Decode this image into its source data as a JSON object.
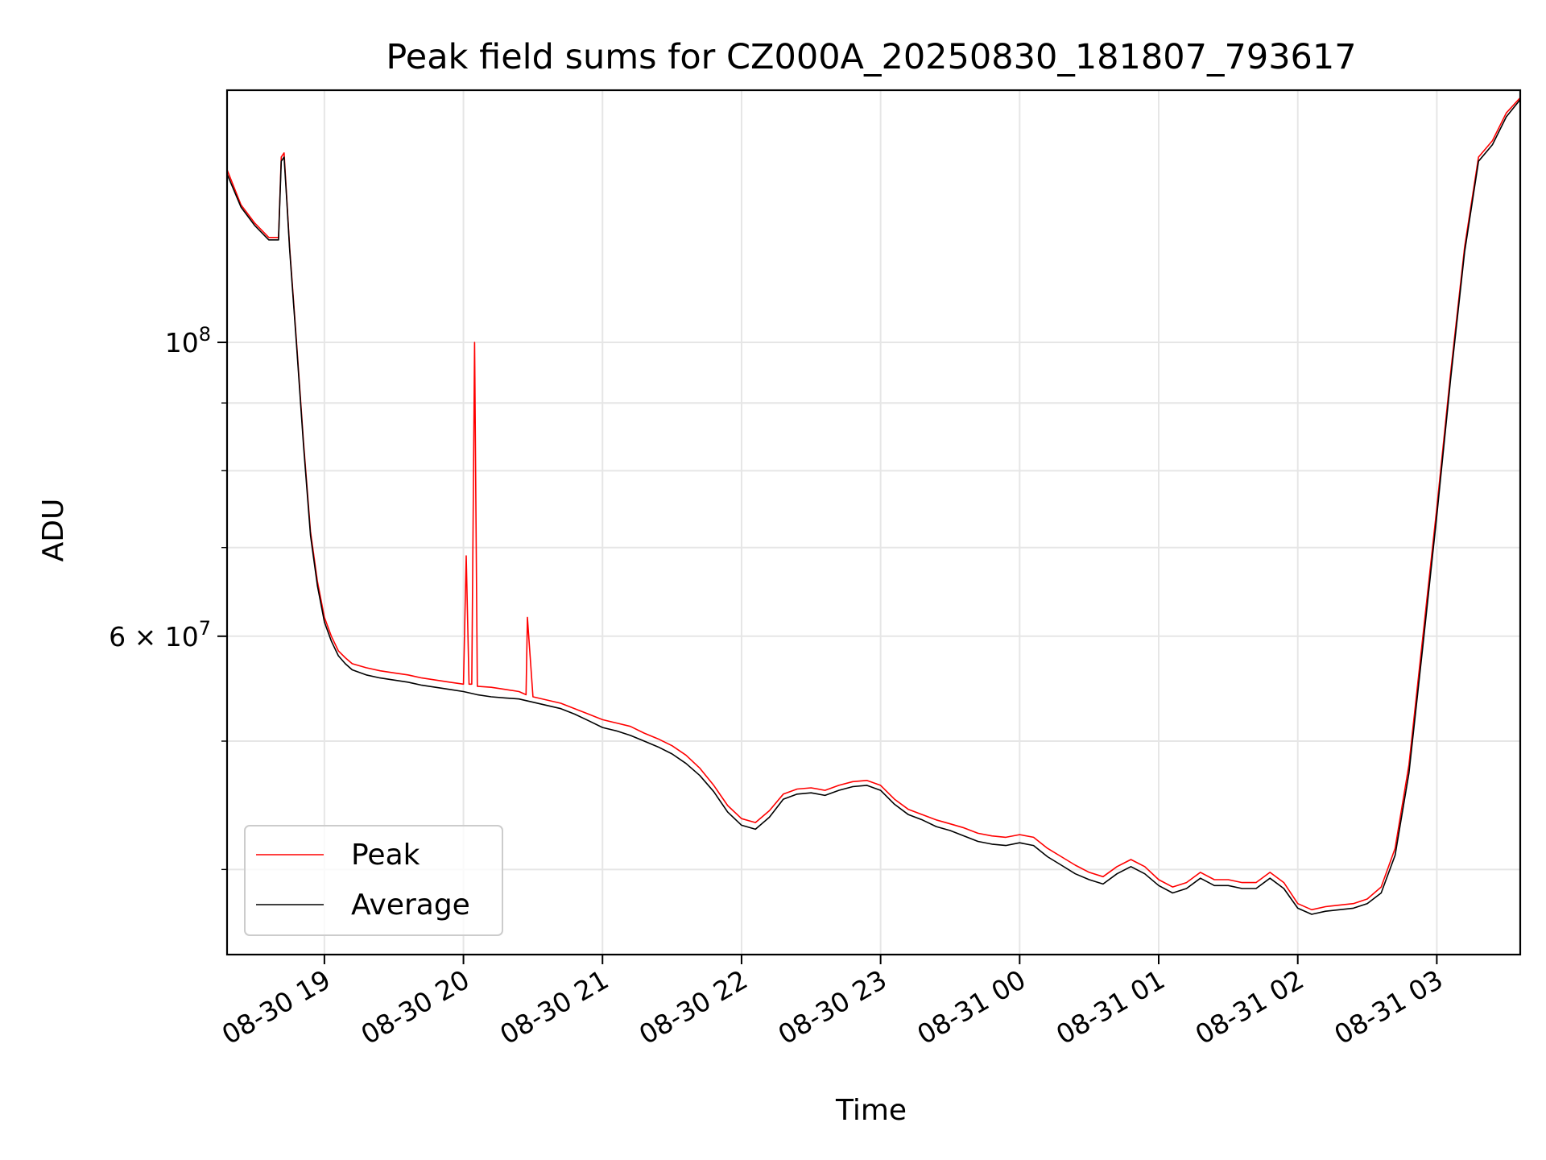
{
  "chart_data": {
    "type": "line",
    "title": "Peak field sums for CZ000A_20250830_181807_793617",
    "xlabel": "Time",
    "ylabel": "ADU",
    "yscale": "log",
    "x_unit": "hours (0 = 08-30 19:00)",
    "xlim": [
      -0.7,
      8.6
    ],
    "ylim": [
      34500000,
      155000000
    ],
    "grid": true,
    "legend_placement": "lower-left",
    "x_ticks": [
      {
        "x": 0,
        "label": "08-30 19"
      },
      {
        "x": 1,
        "label": "08-30 20"
      },
      {
        "x": 2,
        "label": "08-30 21"
      },
      {
        "x": 3,
        "label": "08-30 22"
      },
      {
        "x": 4,
        "label": "08-30 23"
      },
      {
        "x": 5,
        "label": "08-31 00"
      },
      {
        "x": 6,
        "label": "08-31 01"
      },
      {
        "x": 7,
        "label": "08-31 02"
      },
      {
        "x": 8,
        "label": "08-31 03"
      }
    ],
    "y_ticks_major": [
      {
        "y": 60000000,
        "label_base": "6 × 10",
        "label_exp": "7"
      },
      {
        "y": 100000000,
        "label_base": "10",
        "label_exp": "8"
      }
    ],
    "y_ticks_minor": [
      40000000,
      50000000,
      70000000,
      80000000,
      90000000
    ],
    "series": [
      {
        "name": "Peak",
        "color": "#ff0000",
        "x": [
          -0.7,
          -0.6,
          -0.5,
          -0.4,
          -0.33,
          -0.31,
          -0.29,
          -0.27,
          -0.25,
          -0.2,
          -0.15,
          -0.1,
          -0.05,
          0.0,
          0.05,
          0.1,
          0.15,
          0.2,
          0.3,
          0.4,
          0.5,
          0.6,
          0.7,
          0.8,
          0.9,
          1.0,
          1.02,
          1.04,
          1.06,
          1.08,
          1.1,
          1.2,
          1.3,
          1.4,
          1.45,
          1.46,
          1.5,
          1.6,
          1.7,
          1.8,
          1.9,
          2.0,
          2.1,
          2.2,
          2.3,
          2.4,
          2.5,
          2.6,
          2.7,
          2.8,
          2.9,
          3.0,
          3.1,
          3.2,
          3.3,
          3.4,
          3.5,
          3.6,
          3.7,
          3.8,
          3.9,
          4.0,
          4.1,
          4.2,
          4.3,
          4.4,
          4.5,
          4.6,
          4.7,
          4.8,
          4.9,
          5.0,
          5.1,
          5.2,
          5.3,
          5.4,
          5.5,
          5.6,
          5.7,
          5.8,
          5.9,
          6.0,
          6.1,
          6.2,
          6.3,
          6.4,
          6.5,
          6.6,
          6.7,
          6.8,
          6.9,
          7.0,
          7.1,
          7.2,
          7.3,
          7.4,
          7.5,
          7.6,
          7.7,
          7.8,
          7.9,
          8.0,
          8.1,
          8.2,
          8.3,
          8.4,
          8.5,
          8.6
        ],
        "y": [
          135000000,
          127000000,
          123000000,
          120000000,
          120000000,
          138000000,
          139000000,
          128000000,
          118000000,
          100000000,
          84000000,
          72000000,
          66000000,
          62000000,
          60000000,
          58500000,
          57800000,
          57200000,
          56800000,
          56500000,
          56300000,
          56100000,
          55800000,
          55600000,
          55400000,
          55200000,
          69000000,
          55200000,
          55200000,
          100000000,
          55000000,
          54900000,
          54700000,
          54500000,
          54200000,
          62000000,
          54000000,
          53700000,
          53400000,
          52900000,
          52400000,
          51900000,
          51600000,
          51300000,
          50700000,
          50200000,
          49600000,
          48800000,
          47700000,
          46300000,
          44700000,
          43700000,
          43400000,
          44300000,
          45600000,
          46000000,
          46100000,
          45900000,
          46300000,
          46600000,
          46700000,
          46300000,
          45200000,
          44400000,
          44000000,
          43600000,
          43300000,
          43000000,
          42600000,
          42400000,
          42300000,
          42500000,
          42300000,
          41500000,
          40900000,
          40300000,
          39800000,
          39500000,
          40200000,
          40700000,
          40200000,
          39300000,
          38800000,
          39100000,
          39800000,
          39300000,
          39300000,
          39100000,
          39100000,
          39800000,
          39100000,
          37700000,
          37300000,
          37500000,
          37600000,
          37700000,
          38000000,
          38800000,
          41500000,
          48000000,
          60000000,
          75000000,
          95000000,
          118000000,
          138000000,
          142000000,
          149000000,
          153000000
        ]
      },
      {
        "name": "Average",
        "color": "#000000",
        "x": [
          -0.7,
          -0.6,
          -0.5,
          -0.4,
          -0.33,
          -0.31,
          -0.29,
          -0.27,
          -0.25,
          -0.2,
          -0.15,
          -0.1,
          -0.05,
          0.0,
          0.05,
          0.1,
          0.15,
          0.2,
          0.3,
          0.4,
          0.5,
          0.6,
          0.7,
          0.8,
          0.9,
          1.0,
          1.1,
          1.2,
          1.3,
          1.4,
          1.5,
          1.6,
          1.7,
          1.8,
          1.9,
          2.0,
          2.1,
          2.2,
          2.3,
          2.4,
          2.5,
          2.6,
          2.7,
          2.8,
          2.9,
          3.0,
          3.1,
          3.2,
          3.3,
          3.4,
          3.5,
          3.6,
          3.7,
          3.8,
          3.9,
          4.0,
          4.1,
          4.2,
          4.3,
          4.4,
          4.5,
          4.6,
          4.7,
          4.8,
          4.9,
          5.0,
          5.1,
          5.2,
          5.3,
          5.4,
          5.5,
          5.6,
          5.7,
          5.8,
          5.9,
          6.0,
          6.1,
          6.2,
          6.3,
          6.4,
          6.5,
          6.6,
          6.7,
          6.8,
          6.9,
          7.0,
          7.1,
          7.2,
          7.3,
          7.4,
          7.5,
          7.6,
          7.7,
          7.8,
          7.9,
          8.0,
          8.1,
          8.2,
          8.3,
          8.4,
          8.5,
          8.6
        ],
        "y": [
          134000000,
          126500000,
          122500000,
          119500000,
          119500000,
          137000000,
          138000000,
          127500000,
          117500000,
          99500000,
          83500000,
          71500000,
          65500000,
          61500000,
          59500000,
          58000000,
          57200000,
          56600000,
          56100000,
          55800000,
          55600000,
          55400000,
          55100000,
          54900000,
          54700000,
          54500000,
          54200000,
          54000000,
          53900000,
          53800000,
          53500000,
          53200000,
          52900000,
          52400000,
          51800000,
          51200000,
          50900000,
          50500000,
          50000000,
          49500000,
          48900000,
          48100000,
          47100000,
          45800000,
          44200000,
          43200000,
          42900000,
          43800000,
          45200000,
          45600000,
          45700000,
          45500000,
          45900000,
          46200000,
          46300000,
          45900000,
          44800000,
          44000000,
          43600000,
          43100000,
          42800000,
          42400000,
          42000000,
          41800000,
          41700000,
          41900000,
          41700000,
          40900000,
          40300000,
          39700000,
          39300000,
          39000000,
          39700000,
          40200000,
          39700000,
          38900000,
          38400000,
          38700000,
          39400000,
          38900000,
          38900000,
          38700000,
          38700000,
          39400000,
          38700000,
          37400000,
          37000000,
          37200000,
          37300000,
          37400000,
          37700000,
          38400000,
          41000000,
          47300000,
          59000000,
          74000000,
          94000000,
          117000000,
          137000000,
          141000000,
          148000000,
          152500000
        ]
      }
    ]
  }
}
